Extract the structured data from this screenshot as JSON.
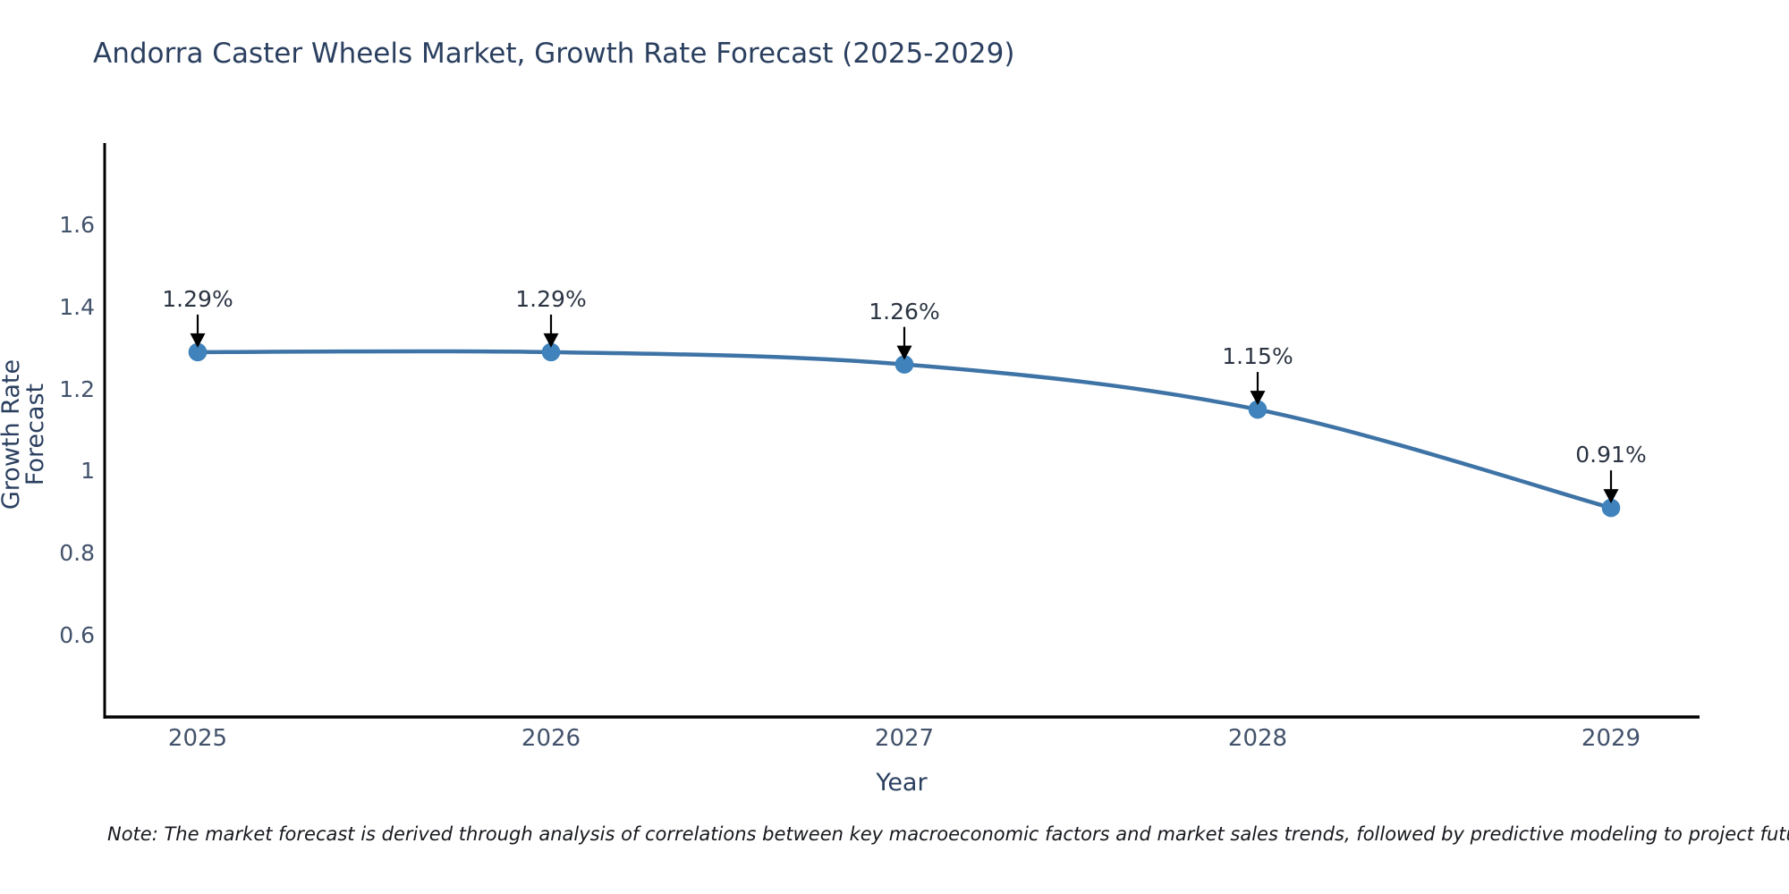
{
  "title": "Andorra Caster Wheels Market, Growth Rate Forecast (2025-2029)",
  "note": "Note: The market forecast is derived through analysis of correlations between key macroeconomic factors and market sales trends, followed by predictive modeling to project future sales",
  "chart_data": {
    "type": "line",
    "title": "Andorra Caster Wheels Market, Growth Rate Forecast (2025-2029)",
    "xlabel": "Year",
    "ylabel": "Growth Rate Forecast",
    "categories": [
      "2025",
      "2026",
      "2027",
      "2028",
      "2029"
    ],
    "series": [
      {
        "name": "Growth Rate Forecast",
        "values": [
          1.29,
          1.29,
          1.26,
          1.15,
          0.91
        ]
      }
    ],
    "point_labels": [
      "1.29%",
      "1.29%",
      "1.26%",
      "1.15%",
      "0.91%"
    ],
    "yticks": [
      0.6,
      0.8,
      1,
      1.2,
      1.4,
      1.6
    ],
    "ytick_labels": [
      "0.6",
      "0.8",
      "1",
      "1.2",
      "1.4",
      "1.6"
    ],
    "ylim": [
      0.4,
      1.8
    ],
    "grid": false,
    "legend": "none",
    "line_shape": "spline",
    "annotation_style": "down-arrow",
    "colors": {
      "line": "#3e73a6",
      "marker": "#3f82bc",
      "axis": "#000000",
      "arrow": "#000000",
      "title_text": "#2a3f5f",
      "tick_text": "#42526b",
      "annotation_text": "#2b3442",
      "background": "#ffffff"
    }
  }
}
